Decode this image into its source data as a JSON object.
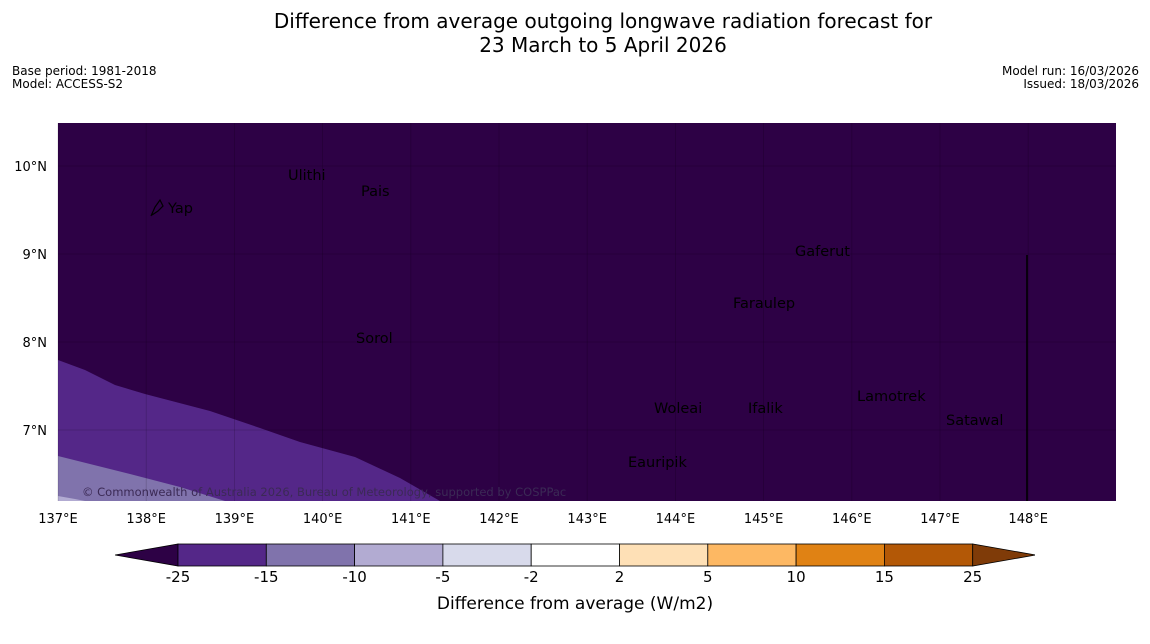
{
  "header": {
    "title_line1": "Difference from average outgoing longwave radiation forecast for",
    "title_line2": "23 March to 5 April 2026",
    "base_period": "Base period: 1981-2018",
    "model": "Model: ACCESS-S2",
    "model_run": "Model run: 16/03/2026",
    "issued": "Issued: 18/03/2026"
  },
  "map": {
    "background_color": "#2d0145",
    "lon_labels": [
      "137°E",
      "138°E",
      "139°E",
      "140°E",
      "141°E",
      "142°E",
      "143°E",
      "144°E",
      "145°E",
      "146°E",
      "147°E",
      "148°E"
    ],
    "lat_labels": [
      "10°N",
      "9°N",
      "8°N",
      "7°N"
    ],
    "places": [
      "Ulithi",
      "Pais",
      "Yap",
      "Gaferut",
      "Faraulep",
      "Sorol",
      "Woleai",
      "Ifalik",
      "Lamotrek",
      "Satawal",
      "Eauripik"
    ],
    "copyright": "© Commonwealth of Australia 2026, Bureau of Meteorology, supported by COSPPac"
  },
  "colorbar": {
    "tick_labels": [
      "-25",
      "-15",
      "-10",
      "-5",
      "-2",
      "2",
      "5",
      "10",
      "15",
      "25"
    ],
    "colors": [
      "#2d0145",
      "#542788",
      "#8073ac",
      "#b2abd2",
      "#d8daeb",
      "#ffffff",
      "#fee0b6",
      "#fdb863",
      "#e08214",
      "#b35806",
      "#7f3b08"
    ],
    "title": "Difference from average (W/m2)"
  }
}
